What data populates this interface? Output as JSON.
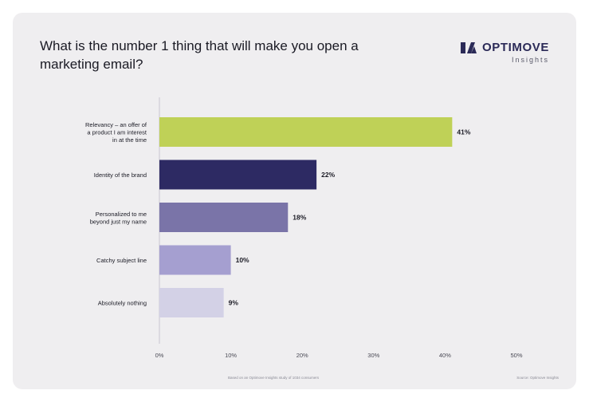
{
  "header": {
    "title": "What is the number 1 thing that will make you open a marketing email?",
    "brand_name": "OPTIMOVE",
    "brand_sub": "Insights"
  },
  "footer": {
    "note": "Based on an Optimove Insights study of 1034 consumers",
    "source": "Source: Optimove Insights"
  },
  "colors": {
    "card_bg": "#efeef0",
    "axis": "#c8c7cf",
    "text": "#1a1a24",
    "brand": "#2b2a57"
  },
  "chart_data": {
    "type": "bar",
    "orientation": "horizontal",
    "title": "What is the number 1 thing that will make you open a marketing email?",
    "categories": [
      "Relevancy – an offer of a product I am interest in at the time",
      "Identity of the brand",
      "Personalized to me beyond just my name",
      "Catchy subject line",
      "Absolutely nothing"
    ],
    "category_lines": [
      [
        "Relevancy – an offer of",
        "a product I am interest",
        "in at the time"
      ],
      [
        "Identity of the brand"
      ],
      [
        "Personalized to me",
        "beyond just my name"
      ],
      [
        "Catchy subject line"
      ],
      [
        "Absolutely nothing"
      ]
    ],
    "values": [
      41,
      22,
      18,
      10,
      9
    ],
    "value_labels": [
      "41%",
      "22%",
      "18%",
      "10%",
      "9%"
    ],
    "bar_colors": [
      "#bfd157",
      "#2d2a63",
      "#7a74a8",
      "#a59fd0",
      "#d3d1e6"
    ],
    "xlim": [
      0,
      50
    ],
    "xticks": [
      0,
      10,
      20,
      30,
      40,
      50
    ],
    "xtick_labels": [
      "0%",
      "10%",
      "20%",
      "30%",
      "40%",
      "50%"
    ],
    "xlabel": "",
    "ylabel": "",
    "grid": false
  }
}
